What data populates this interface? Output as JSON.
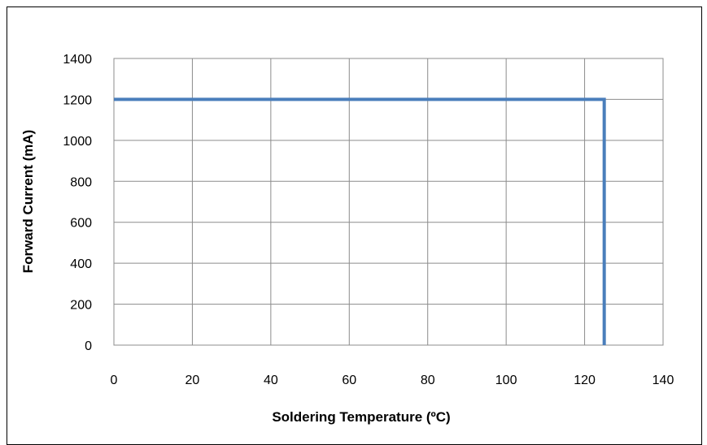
{
  "chart_data": {
    "type": "line",
    "title": "",
    "xlabel": "Soldering Temperature (ºC)",
    "ylabel": "Forward Current (mA)",
    "xlim": [
      0,
      140
    ],
    "ylim": [
      0,
      1400
    ],
    "xticks": [
      0,
      20,
      40,
      60,
      80,
      100,
      120,
      140
    ],
    "yticks": [
      0,
      200,
      400,
      600,
      800,
      1000,
      1200,
      1400
    ],
    "grid": true,
    "legend": "none",
    "series": [
      {
        "color": "#4a7ebb",
        "x": [
          0,
          125,
          125
        ],
        "y": [
          1200,
          1200,
          0
        ]
      }
    ]
  }
}
